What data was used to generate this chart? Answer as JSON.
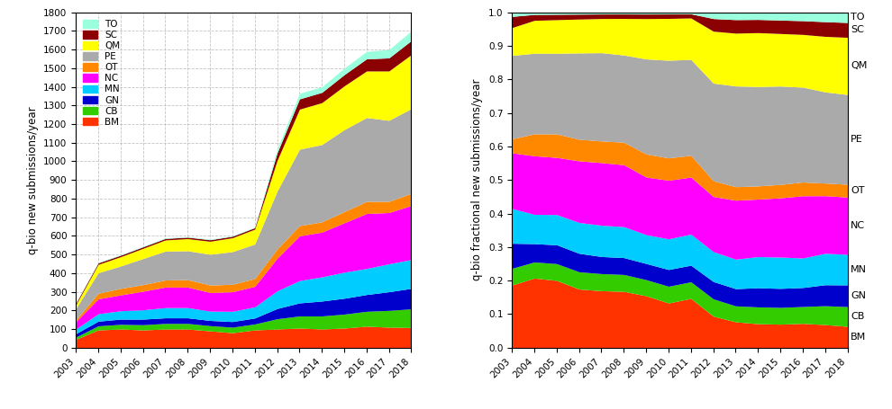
{
  "years": [
    2003,
    2004,
    2005,
    2006,
    2007,
    2008,
    2009,
    2010,
    2011,
    2012,
    2013,
    2014,
    2015,
    2016,
    2017,
    2018
  ],
  "categories": [
    "BM",
    "CB",
    "GN",
    "MN",
    "NC",
    "OT",
    "PE",
    "QM",
    "SC",
    "TO"
  ],
  "colors": [
    "#ff3300",
    "#33cc00",
    "#0000cc",
    "#00ccff",
    "#ff00ff",
    "#ff8800",
    "#aaaaaa",
    "#ffff00",
    "#8b0000",
    "#99ffdd"
  ],
  "data": {
    "BM": [
      45,
      95,
      100,
      95,
      100,
      100,
      90,
      80,
      95,
      100,
      105,
      100,
      105,
      115,
      110,
      108
    ],
    "CB": [
      12,
      22,
      25,
      28,
      30,
      30,
      28,
      30,
      32,
      55,
      65,
      70,
      75,
      80,
      90,
      100
    ],
    "GN": [
      18,
      25,
      28,
      30,
      30,
      30,
      28,
      30,
      32,
      55,
      70,
      80,
      85,
      90,
      100,
      110
    ],
    "MN": [
      25,
      40,
      45,
      50,
      55,
      55,
      50,
      55,
      60,
      95,
      120,
      130,
      140,
      140,
      150,
      155
    ],
    "NC": [
      40,
      80,
      85,
      100,
      110,
      110,
      100,
      105,
      110,
      175,
      240,
      240,
      265,
      295,
      275,
      290
    ],
    "OT": [
      10,
      30,
      35,
      35,
      38,
      40,
      40,
      40,
      42,
      50,
      55,
      55,
      60,
      65,
      60,
      65
    ],
    "PE": [
      60,
      110,
      120,
      140,
      155,
      155,
      165,
      175,
      185,
      310,
      410,
      415,
      440,
      450,
      435,
      455
    ],
    "QM": [
      20,
      45,
      50,
      55,
      60,
      65,
      70,
      75,
      80,
      165,
      215,
      225,
      235,
      250,
      265,
      290
    ],
    "SC": [
      8,
      8,
      8,
      8,
      8,
      8,
      8,
      8,
      8,
      40,
      55,
      55,
      60,
      65,
      70,
      75
    ],
    "TO": [
      3,
      3,
      3,
      3,
      3,
      3,
      3,
      3,
      3,
      20,
      30,
      30,
      35,
      40,
      45,
      52
    ]
  },
  "ylabel_left": "q-bio new submissions/year",
  "ylabel_right": "q-bio fractional new submissions/year",
  "ylim_left": [
    0,
    1800
  ],
  "ylim_right": [
    0,
    1.0
  ],
  "yticks_left": [
    0,
    100,
    200,
    300,
    400,
    500,
    600,
    700,
    800,
    900,
    1000,
    1100,
    1200,
    1300,
    1400,
    1500,
    1600,
    1700,
    1800
  ],
  "yticks_right": [
    0.0,
    0.1,
    0.2,
    0.3,
    0.4,
    0.5,
    0.6,
    0.7,
    0.8,
    0.9,
    1.0
  ],
  "background_color": "#ffffff",
  "grid_color": "#aaaaaa"
}
